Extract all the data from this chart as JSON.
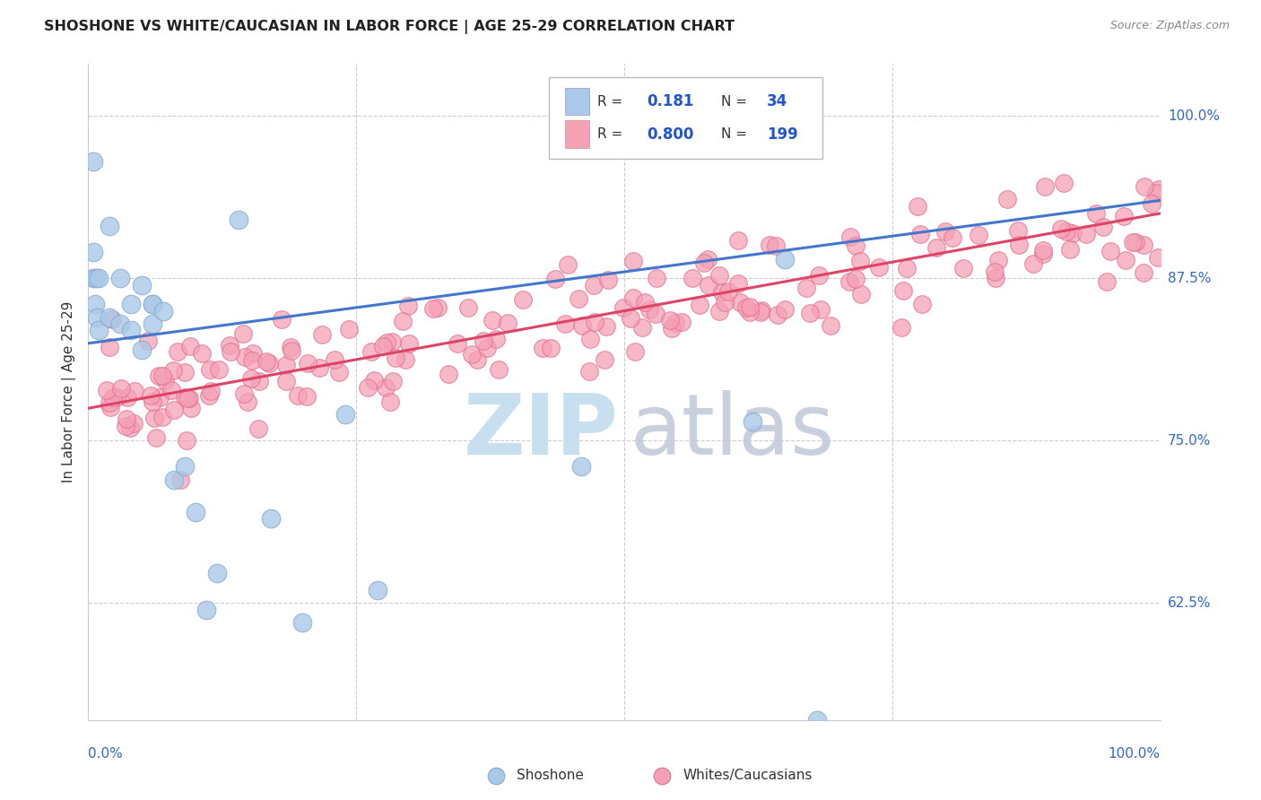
{
  "title": "SHOSHONE VS WHITE/CAUCASIAN IN LABOR FORCE | AGE 25-29 CORRELATION CHART",
  "source": "Source: ZipAtlas.com",
  "ylabel": "In Labor Force | Age 25-29",
  "ytick_labels": [
    "62.5%",
    "75.0%",
    "87.5%",
    "100.0%"
  ],
  "ytick_values": [
    0.625,
    0.75,
    0.875,
    1.0
  ],
  "xlim": [
    0.0,
    1.0
  ],
  "ylim": [
    0.535,
    1.04
  ],
  "legend_blue_r": "0.181",
  "legend_blue_n": "34",
  "legend_pink_r": "0.800",
  "legend_pink_n": "199",
  "shoshone_color": "#aac8e8",
  "caucasian_color": "#f5a0b5",
  "shoshone_edge_color": "#88aacc",
  "caucasian_edge_color": "#e07090",
  "shoshone_line_color": "#4477cc",
  "caucasian_line_color": "#dd4466",
  "legend_label_shoshone": "Shoshone",
  "legend_label_caucasian": "Whites/Caucasians",
  "watermark_zip": "ZIP",
  "watermark_atlas": "atlas",
  "background_color": "#ffffff",
  "sho_line_x0": 0.0,
  "sho_line_y0": 0.825,
  "sho_line_x1": 1.0,
  "sho_line_y1": 0.935,
  "cau_line_x0": 0.0,
  "cau_line_y0": 0.775,
  "cau_line_x1": 1.0,
  "cau_line_y1": 0.925
}
